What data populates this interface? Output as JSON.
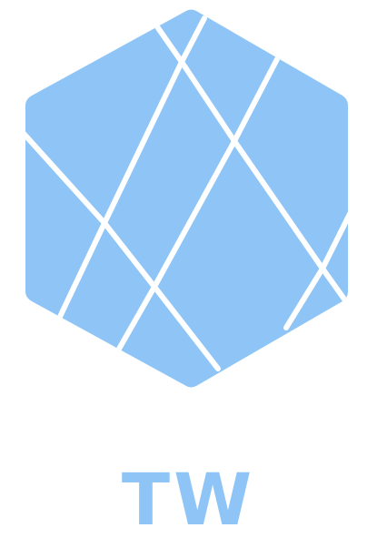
{
  "brand": {
    "wordmark": "TW",
    "logo_icon": "faceted-hexagon-icon",
    "colors": {
      "primary": "#8ec5f6",
      "background": "#ffffff"
    }
  }
}
